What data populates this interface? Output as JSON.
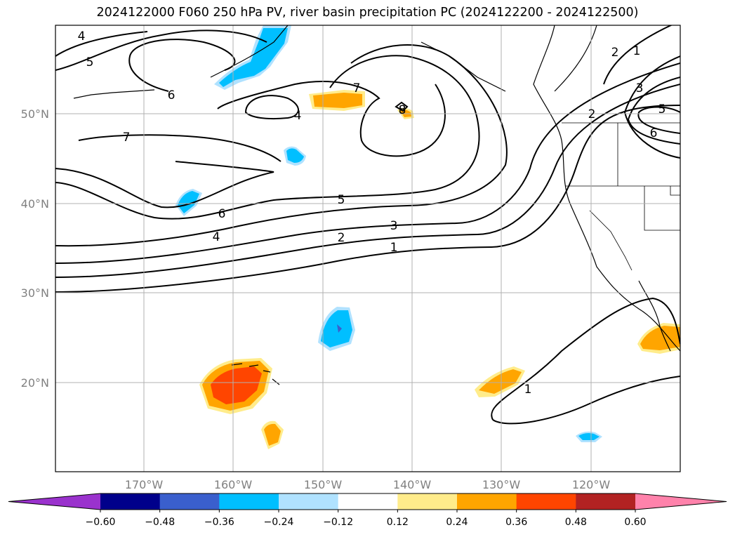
{
  "title": "2024122000 F060 250 hPa PV, river basin precipitation PC (2024122200 - 2024122500)",
  "lat_labels": [
    "50°N",
    "40°N",
    "30°N",
    "20°N"
  ],
  "lon_labels": [
    "170°W",
    "160°W",
    "150°W",
    "140°W",
    "130°W",
    "120°W"
  ],
  "contour_labels": [
    "4",
    "5",
    "6",
    "7",
    "4",
    "7",
    "8",
    "5",
    "6",
    "4",
    "3",
    "2",
    "1",
    "2",
    "1",
    "2",
    "3",
    "5",
    "6",
    "1"
  ],
  "colorbar": {
    "colors": [
      "#9a32cd",
      "#00008b",
      "#3a5fcd",
      "#00bfff",
      "#b0e2ff",
      "#ffffff",
      "#ffec8b",
      "#ffa500",
      "#ff4500",
      "#b22222",
      "#ff82ab"
    ],
    "tick_labels": [
      "−0.60",
      "−0.48",
      "−0.36",
      "−0.24",
      "−0.12",
      "0.12",
      "0.24",
      "0.36",
      "0.48",
      "0.60"
    ],
    "extend": "both"
  },
  "fill_colors": {
    "neg_light": "#b0e2ff",
    "neg": "#00bfff",
    "neg_dark": "#3a5fcd",
    "pos_light": "#ffec8b",
    "pos": "#ffa500",
    "pos_strong": "#ff4500"
  }
}
